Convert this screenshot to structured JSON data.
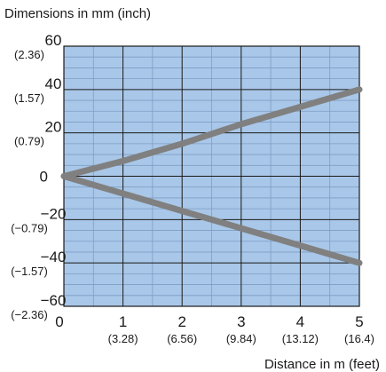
{
  "chart_data": {
    "type": "line",
    "title": "Dimensions in mm (inch)",
    "xlabel": "Distance in m (feet)",
    "ylabel": "",
    "xlim": [
      0,
      5
    ],
    "ylim": [
      -60,
      60
    ],
    "grid": true,
    "x_ticks": [
      {
        "value": 0,
        "label": "0",
        "sub": ""
      },
      {
        "value": 1,
        "label": "1",
        "sub": "(3.28)"
      },
      {
        "value": 2,
        "label": "2",
        "sub": "(6.56)"
      },
      {
        "value": 3,
        "label": "3",
        "sub": "(9.84)"
      },
      {
        "value": 4,
        "label": "4",
        "sub": "(13.12)"
      },
      {
        "value": 5,
        "label": "5",
        "sub": "(16.4)"
      }
    ],
    "y_ticks": [
      {
        "value": 60,
        "label": "60",
        "sub": "(2.36)"
      },
      {
        "value": 40,
        "label": "40",
        "sub": "(1.57)"
      },
      {
        "value": 20,
        "label": "20",
        "sub": "(0.79)"
      },
      {
        "value": 0,
        "label": "0",
        "sub": ""
      },
      {
        "value": -20,
        "label": "−20",
        "sub": "(−0.79)"
      },
      {
        "value": -40,
        "label": "−40",
        "sub": "(−1.57)"
      },
      {
        "value": -60,
        "label": "−60",
        "sub": "(−2.36)"
      }
    ],
    "series": [
      {
        "x": [
          0,
          1,
          2,
          3,
          4,
          5
        ],
        "y": [
          0,
          7,
          15,
          24,
          32,
          40
        ]
      },
      {
        "x": [
          0,
          1,
          2,
          3,
          4,
          5
        ],
        "y": [
          0,
          -8,
          -16,
          -24,
          -32,
          -40
        ]
      }
    ],
    "colors": {
      "plot_background": "#a9c7e8",
      "major_grid": "#1a1a1a",
      "minor_grid": "#7f9dc4",
      "line": "#808080",
      "text": "#1a1a1a"
    }
  }
}
